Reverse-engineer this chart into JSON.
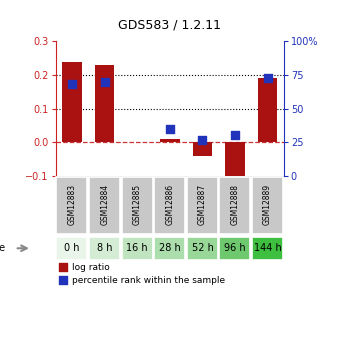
{
  "title": "GDS583 / 1.2.11",
  "samples": [
    "GSM12883",
    "GSM12884",
    "GSM12885",
    "GSM12886",
    "GSM12887",
    "GSM12888",
    "GSM12889"
  ],
  "ages": [
    "0 h",
    "8 h",
    "16 h",
    "28 h",
    "52 h",
    "96 h",
    "144 h"
  ],
  "log_ratio": [
    0.24,
    0.23,
    0.0,
    0.01,
    -0.04,
    -0.13,
    0.19
  ],
  "percentile_rank": [
    68,
    70,
    null,
    35,
    27,
    30,
    73
  ],
  "left_ylim": [
    -0.1,
    0.3
  ],
  "right_ylim": [
    0,
    100
  ],
  "left_yticks": [
    -0.1,
    0.0,
    0.1,
    0.2,
    0.3
  ],
  "right_yticks": [
    0,
    25,
    50,
    75,
    100
  ],
  "right_yticklabels": [
    "0",
    "25",
    "50",
    "75",
    "100%"
  ],
  "dotted_lines": [
    0.1,
    0.2
  ],
  "bar_color": "#aa1111",
  "blue_color": "#2233bb",
  "zero_line_color": "#cc3333",
  "age_colors": [
    "#e8f5e8",
    "#d4ecd4",
    "#c0e3c0",
    "#acddac",
    "#98d798",
    "#6ec86e",
    "#3fbf3f"
  ],
  "sample_bg_color": "#c8c8c8",
  "bar_width": 0.6,
  "square_size": 35,
  "left_axis_color": "#cc2222",
  "right_axis_color": "#2233bb",
  "title_fontsize": 9,
  "tick_fontsize": 7,
  "sample_fontsize": 5.5,
  "age_fontsize": 7
}
